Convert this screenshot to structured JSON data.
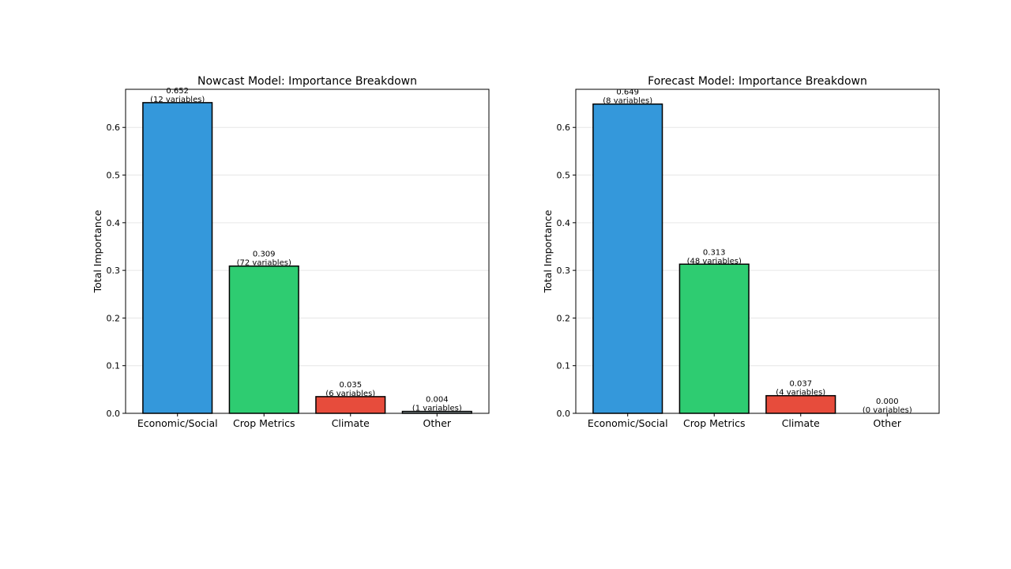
{
  "chart_data": [
    {
      "type": "bar",
      "title": "Nowcast Model: Importance Breakdown",
      "xlabel": "",
      "ylabel": "Total Importance",
      "ylim": [
        0,
        0.68
      ],
      "yticks": [
        "0.0",
        "0.1",
        "0.2",
        "0.3",
        "0.4",
        "0.5",
        "0.6"
      ],
      "grid": "horizontal",
      "categories": [
        "Economic/Social",
        "Crop Metrics",
        "Climate",
        "Other"
      ],
      "values": [
        0.652,
        0.309,
        0.035,
        0.004
      ],
      "value_labels": [
        "0.652",
        "0.309",
        "0.035",
        "0.004"
      ],
      "count_labels": [
        "(12 variables)",
        "(72 variables)",
        "(6 variables)",
        "(1 variables)"
      ],
      "colors": [
        "#3498db",
        "#2ecc71",
        "#e74c3c",
        "#95a5a6"
      ]
    },
    {
      "type": "bar",
      "title": "Forecast Model: Importance Breakdown",
      "xlabel": "",
      "ylabel": "Total Importance",
      "ylim": [
        0,
        0.68
      ],
      "yticks": [
        "0.0",
        "0.1",
        "0.2",
        "0.3",
        "0.4",
        "0.5",
        "0.6"
      ],
      "grid": "horizontal",
      "categories": [
        "Economic/Social",
        "Crop Metrics",
        "Climate",
        "Other"
      ],
      "values": [
        0.649,
        0.313,
        0.037,
        0.0
      ],
      "value_labels": [
        "0.649",
        "0.313",
        "0.037",
        "0.000"
      ],
      "count_labels": [
        "(8 variables)",
        "(48 variables)",
        "(4 variables)",
        "(0 variables)"
      ],
      "colors": [
        "#3498db",
        "#2ecc71",
        "#e74c3c",
        "#95a5a6"
      ]
    }
  ]
}
